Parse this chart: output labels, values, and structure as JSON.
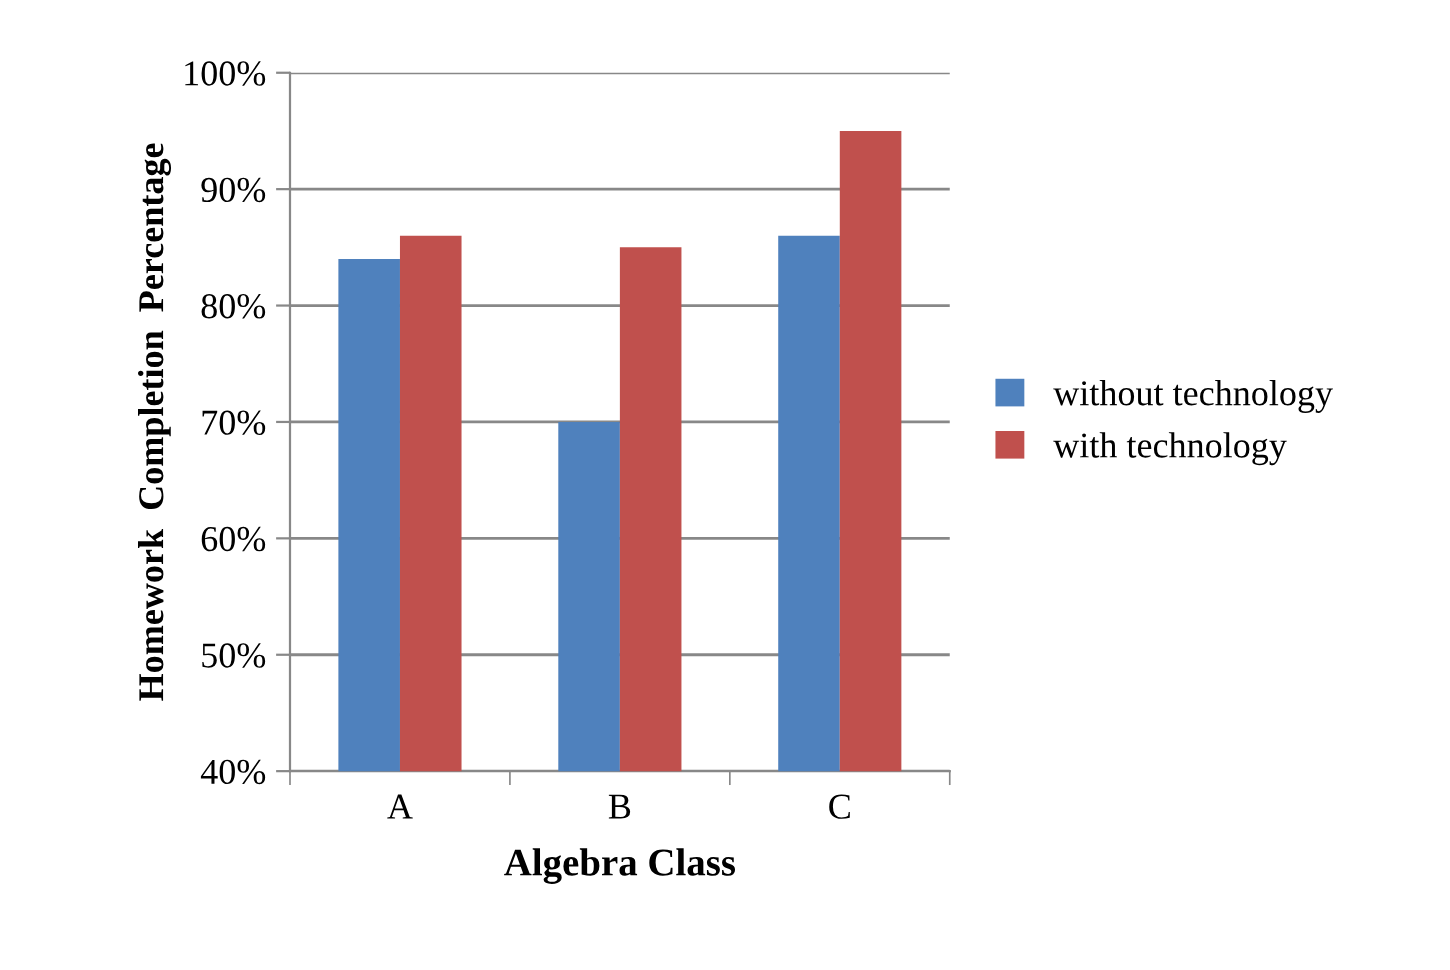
{
  "chart_data": {
    "type": "bar",
    "xlabel": "Algebra Class",
    "ylabel": "Homework  Completion  Percentage",
    "categories": [
      "A",
      "B",
      "C"
    ],
    "series": [
      {
        "name": "without technology",
        "color": "#4f81bd",
        "values": [
          84,
          70,
          86
        ]
      },
      {
        "name": "with technology",
        "color": "#c0504d",
        "values": [
          86,
          85,
          95
        ]
      }
    ],
    "ylim": [
      40,
      100
    ],
    "yticks": [
      {
        "value": 40,
        "label": "40%"
      },
      {
        "value": 50,
        "label": "50%"
      },
      {
        "value": 60,
        "label": "60%"
      },
      {
        "value": 70,
        "label": "70%"
      },
      {
        "value": 80,
        "label": "80%"
      },
      {
        "value": 90,
        "label": "90%"
      },
      {
        "value": 100,
        "label": "100%"
      }
    ],
    "grid": "y",
    "legend": "right"
  }
}
